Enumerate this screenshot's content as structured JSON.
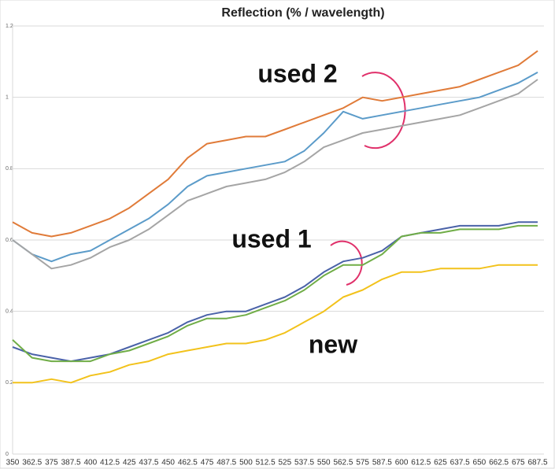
{
  "chart_data": {
    "type": "line",
    "title": "Reflection (% / wavelength)",
    "categories": [
      "350",
      "362.5",
      "375",
      "387.5",
      "400",
      "412.5",
      "425",
      "437.5",
      "450",
      "462.5",
      "475",
      "487.5",
      "500",
      "512.5",
      "525",
      "537.5",
      "550",
      "562.5",
      "575",
      "587.5",
      "600",
      "612.5",
      "625",
      "637.5",
      "650",
      "662.5",
      "675",
      "687.5"
    ],
    "series": [
      {
        "color": "#e07b39",
        "values": [
          0.65,
          0.62,
          0.61,
          0.62,
          0.64,
          0.66,
          0.69,
          0.73,
          0.77,
          0.83,
          0.87,
          0.88,
          0.89,
          0.89,
          0.91,
          0.93,
          0.95,
          0.97,
          1.0,
          0.99,
          1.0,
          1.01,
          1.02,
          1.03,
          1.05,
          1.07,
          1.09,
          1.13
        ]
      },
      {
        "color": "#5b9bc9",
        "values": [
          0.6,
          0.56,
          0.54,
          0.56,
          0.57,
          0.6,
          0.63,
          0.66,
          0.7,
          0.75,
          0.78,
          0.79,
          0.8,
          0.81,
          0.82,
          0.85,
          0.9,
          0.96,
          0.94,
          0.95,
          0.96,
          0.97,
          0.98,
          0.99,
          1.0,
          1.02,
          1.04,
          1.07
        ]
      },
      {
        "color": "#a5a5a5",
        "values": [
          0.6,
          0.56,
          0.52,
          0.53,
          0.55,
          0.58,
          0.6,
          0.63,
          0.67,
          0.71,
          0.73,
          0.75,
          0.76,
          0.77,
          0.79,
          0.82,
          0.86,
          0.88,
          0.9,
          0.91,
          0.92,
          0.93,
          0.94,
          0.95,
          0.97,
          0.99,
          1.01,
          1.05
        ]
      },
      {
        "color": "#4a62a8",
        "values": [
          0.3,
          0.28,
          0.27,
          0.26,
          0.27,
          0.28,
          0.3,
          0.32,
          0.34,
          0.37,
          0.39,
          0.4,
          0.4,
          0.42,
          0.44,
          0.47,
          0.51,
          0.54,
          0.55,
          0.57,
          0.61,
          0.62,
          0.63,
          0.64,
          0.64,
          0.64,
          0.65,
          0.65
        ]
      },
      {
        "color": "#70ad47",
        "values": [
          0.32,
          0.27,
          0.26,
          0.26,
          0.26,
          0.28,
          0.29,
          0.31,
          0.33,
          0.36,
          0.38,
          0.38,
          0.39,
          0.41,
          0.43,
          0.46,
          0.5,
          0.53,
          0.53,
          0.56,
          0.61,
          0.62,
          0.62,
          0.63,
          0.63,
          0.63,
          0.64,
          0.64
        ]
      },
      {
        "color": "#f2c21b",
        "values": [
          0.2,
          0.2,
          0.21,
          0.2,
          0.22,
          0.23,
          0.25,
          0.26,
          0.28,
          0.29,
          0.3,
          0.31,
          0.31,
          0.32,
          0.34,
          0.37,
          0.4,
          0.44,
          0.46,
          0.49,
          0.51,
          0.51,
          0.52,
          0.52,
          0.52,
          0.53,
          0.53,
          0.53
        ]
      }
    ],
    "ylim": [
      0,
      1.2
    ],
    "yticks": [
      0,
      0.2,
      0.4,
      0.6,
      0.8,
      1,
      1.2
    ],
    "grid": true,
    "annotations": [
      "used 2",
      "used 1",
      "new"
    ]
  }
}
